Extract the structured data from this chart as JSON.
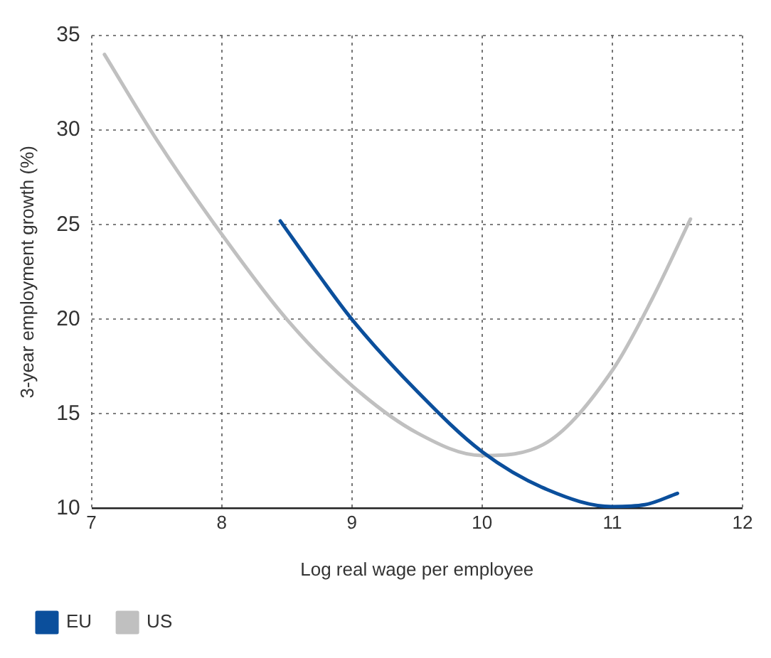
{
  "chart_data": {
    "type": "line",
    "xlabel": "Log real wage per employee",
    "ylabel": "3-year employment growth (%)",
    "xlim": [
      7,
      12
    ],
    "xticks": [
      7,
      8,
      9,
      10,
      11,
      12
    ],
    "ylim": [
      10,
      35
    ],
    "yticks": [
      10,
      15,
      20,
      25,
      30,
      35
    ],
    "grid": true,
    "legend": "bottom left",
    "marker": "none",
    "line_style": "solid",
    "series": [
      {
        "name": "EU",
        "color": "#0b4f9c",
        "x": [
          8.45,
          8.75,
          9,
          9.5,
          10,
          10.5,
          11,
          11.25,
          11.5
        ],
        "values": [
          25.2,
          22.3,
          20,
          16.2,
          13,
          11,
          10.1,
          10.2,
          10.8
        ]
      },
      {
        "name": "US",
        "color": "#c0c0c0",
        "x": [
          7.1,
          7.5,
          8,
          8.5,
          9,
          9.5,
          10,
          10.5,
          11,
          11.3,
          11.6
        ],
        "values": [
          34,
          29.5,
          24.5,
          20,
          16.5,
          14,
          12.8,
          13.5,
          17.3,
          21,
          25.3
        ]
      }
    ]
  }
}
